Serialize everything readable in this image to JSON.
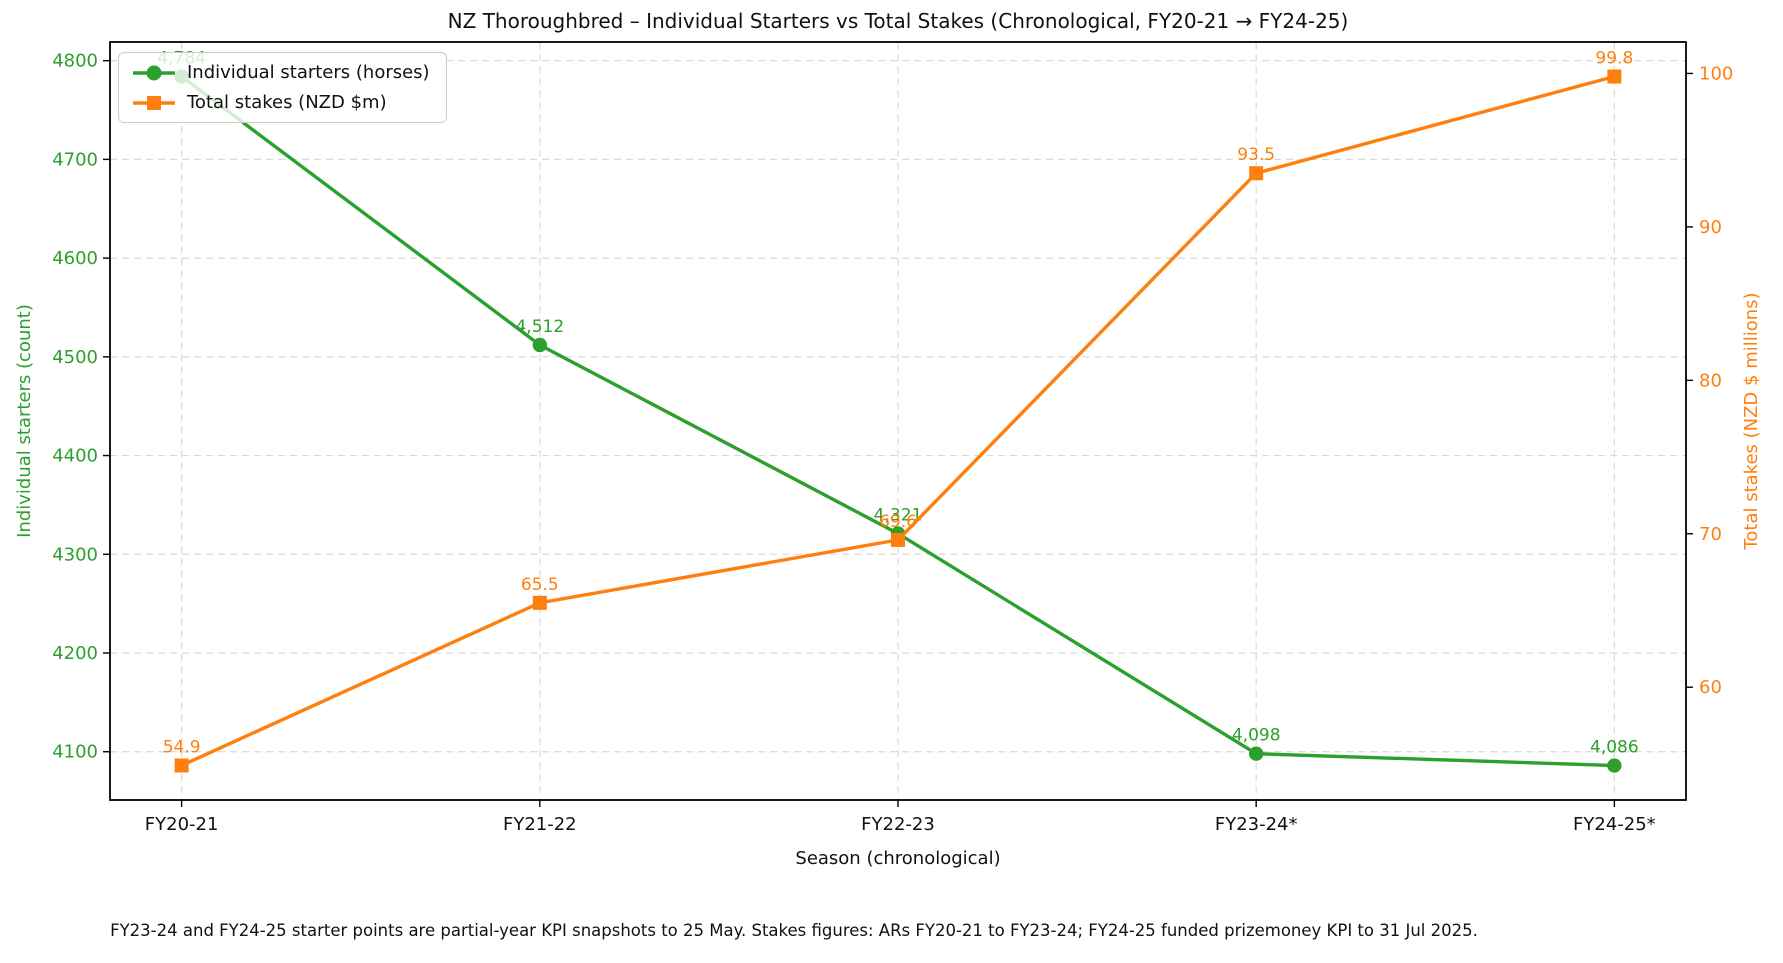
{
  "chart_data": {
    "type": "line",
    "title": "NZ Thoroughbred – Individual Starters vs Total Stakes (Chronological, FY20-21 → FY24-25)",
    "xlabel": "Season (chronological)",
    "footnote": "FY23-24 and FY24-25 starter points are partial-year KPI snapshots to 25 May. Stakes figures: ARs FY20-21 to FY23-24; FY24-25 funded prizemoney KPI to 31 Jul 2025.",
    "categories": [
      "FY20-21",
      "FY21-22",
      "FY22-23",
      "FY23-24*",
      "FY24-25*"
    ],
    "xlim": [
      -0.2,
      4.2
    ],
    "grid": true,
    "grid_color": "#d9d9d9",
    "legend_position": "upper left",
    "series": [
      {
        "name": "Individual starters (horses)",
        "axis": "left",
        "color": "#2ca02c",
        "marker": "circle",
        "values": [
          4784,
          4512,
          4321,
          4098,
          4086
        ],
        "point_labels": [
          "4,784",
          "4,512",
          "4,321",
          "4,098",
          "4,086"
        ]
      },
      {
        "name": "Total stakes (NZD $m)",
        "axis": "right",
        "color": "#ff7f0e",
        "marker": "square",
        "values": [
          54.9,
          65.5,
          69.6,
          93.5,
          99.8
        ],
        "point_labels": [
          "54.9",
          "65.5",
          "69.6",
          "93.5",
          "99.8"
        ]
      }
    ],
    "left_axis": {
      "label": "Individual starters (count)",
      "color": "#2ca02c",
      "ticks": [
        4100,
        4200,
        4300,
        4400,
        4500,
        4600,
        4700,
        4800
      ],
      "ylim": [
        4051.1,
        4818.9
      ]
    },
    "right_axis": {
      "label": "Total stakes (NZD $ millions)",
      "color": "#ff7f0e",
      "ticks": [
        60,
        70,
        80,
        90,
        100
      ],
      "ylim": [
        52.65,
        102.05
      ]
    }
  }
}
